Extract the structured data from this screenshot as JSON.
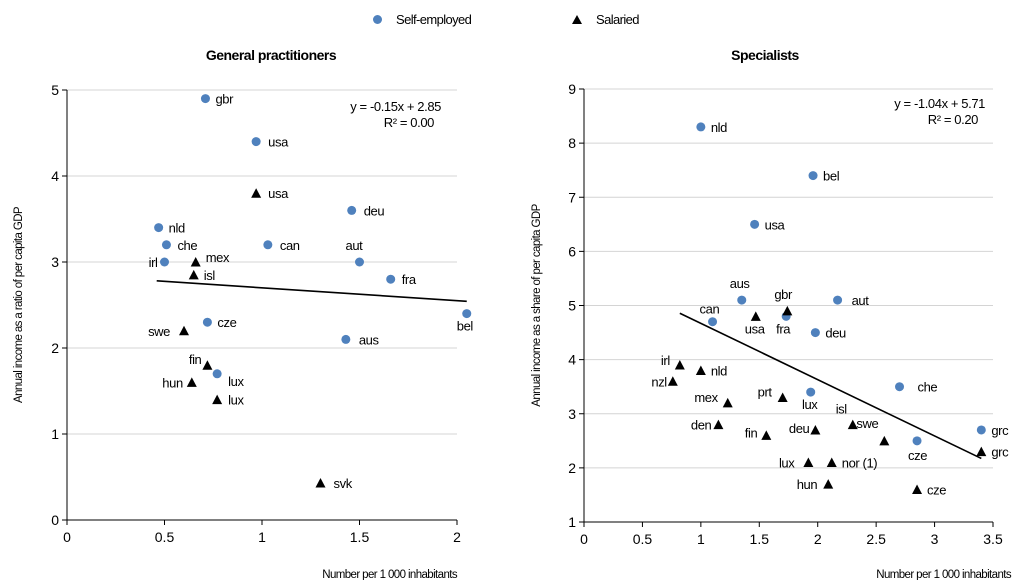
{
  "legend": {
    "self_employed": "Self-employed",
    "salaried": "Salaried",
    "self_employed_color": "#4f81bd",
    "salaried_color": "#000000",
    "self_employed_marker": "circle",
    "salaried_marker": "triangle"
  },
  "chart_data": [
    {
      "type": "scatter",
      "title": "General practitioners",
      "xlabel": "Number per 1 000 inhabitants",
      "ylabel": "Annual income as a ratio of per capita GDP",
      "xlim": [
        0,
        2
      ],
      "ylim": [
        0,
        5
      ],
      "xticks": [
        0,
        0.5,
        1,
        1.5,
        2
      ],
      "xtick_labels": [
        "0",
        "0.5",
        "1",
        "1.5",
        "2"
      ],
      "yticks": [
        0,
        1,
        2,
        3,
        4,
        5
      ],
      "ytick_labels": [
        "0",
        "1",
        "2",
        "3",
        "4",
        "5"
      ],
      "grid": "horizontal",
      "trendline": {
        "equation": "y = -0.15x + 2.85",
        "r2": "R² = 0.00",
        "slope": -0.15,
        "intercept": 2.85,
        "x_range": [
          0.46,
          2.05
        ]
      },
      "series": [
        {
          "name": "Self-employed",
          "points": [
            {
              "label": "gbr",
              "x": 0.71,
              "y": 4.9
            },
            {
              "label": "usa",
              "x": 0.97,
              "y": 4.4
            },
            {
              "label": "deu",
              "x": 1.46,
              "y": 3.6
            },
            {
              "label": "nld",
              "x": 0.47,
              "y": 3.4
            },
            {
              "label": "che",
              "x": 0.51,
              "y": 3.2
            },
            {
              "label": "can",
              "x": 1.03,
              "y": 3.2
            },
            {
              "label": "irl",
              "x": 0.5,
              "y": 3.0
            },
            {
              "label": "aut",
              "x": 1.5,
              "y": 3.0
            },
            {
              "label": "fra",
              "x": 1.66,
              "y": 2.8
            },
            {
              "label": "cze",
              "x": 0.72,
              "y": 2.3
            },
            {
              "label": "aus",
              "x": 1.43,
              "y": 2.1
            },
            {
              "label": "bel",
              "x": 2.05,
              "y": 2.4
            },
            {
              "label": "lux",
              "x": 0.77,
              "y": 1.7
            }
          ]
        },
        {
          "name": "Salaried",
          "points": [
            {
              "label": "usa",
              "x": 0.97,
              "y": 3.8
            },
            {
              "label": "mex",
              "x": 0.66,
              "y": 3.0
            },
            {
              "label": "isl",
              "x": 0.65,
              "y": 2.85
            },
            {
              "label": "swe",
              "x": 0.6,
              "y": 2.2
            },
            {
              "label": "fin",
              "x": 0.72,
              "y": 1.8
            },
            {
              "label": "hun",
              "x": 0.64,
              "y": 1.6
            },
            {
              "label": "lux",
              "x": 0.77,
              "y": 1.4
            },
            {
              "label": "svk",
              "x": 1.3,
              "y": 0.43
            }
          ]
        }
      ]
    },
    {
      "type": "scatter",
      "title": "Specialists",
      "xlabel": "Number per 1 000 inhabitants",
      "ylabel": "Annual income as a share of per capita GDP",
      "xlim": [
        0,
        3.5
      ],
      "ylim": [
        1,
        9
      ],
      "xticks": [
        0,
        0.5,
        1,
        1.5,
        2,
        2.5,
        3,
        3.5
      ],
      "xtick_labels": [
        "0",
        "0.5",
        "1",
        "1.5",
        "2",
        "2.5",
        "3",
        "3.5"
      ],
      "yticks": [
        1,
        2,
        3,
        4,
        5,
        6,
        7,
        8,
        9
      ],
      "ytick_labels": [
        "1",
        "2",
        "3",
        "4",
        "5",
        "6",
        "7",
        "8",
        "9"
      ],
      "grid": "horizontal",
      "trendline": {
        "equation": "y = -1.04x + 5.71",
        "r2": "R² = 0.20",
        "slope": -1.04,
        "intercept": 5.71,
        "x_range": [
          0.82,
          3.4
        ]
      },
      "series": [
        {
          "name": "Self-employed",
          "points": [
            {
              "label": "nld",
              "x": 1.0,
              "y": 8.3
            },
            {
              "label": "bel",
              "x": 1.96,
              "y": 7.4
            },
            {
              "label": "usa",
              "x": 1.46,
              "y": 6.5
            },
            {
              "label": "aus",
              "x": 1.35,
              "y": 5.1
            },
            {
              "label": "aut",
              "x": 2.17,
              "y": 5.1
            },
            {
              "label": "can",
              "x": 1.1,
              "y": 4.7
            },
            {
              "label": "fra",
              "x": 1.73,
              "y": 4.8
            },
            {
              "label": "deu",
              "x": 1.98,
              "y": 4.5
            },
            {
              "label": "che",
              "x": 2.7,
              "y": 3.5
            },
            {
              "label": "lux",
              "x": 1.94,
              "y": 3.4
            },
            {
              "label": "cze",
              "x": 2.85,
              "y": 2.5
            },
            {
              "label": "grc",
              "x": 3.4,
              "y": 2.7
            }
          ]
        },
        {
          "name": "Salaried",
          "points": [
            {
              "label": "gbr",
              "x": 1.74,
              "y": 4.9
            },
            {
              "label": "usa",
              "x": 1.47,
              "y": 4.8
            },
            {
              "label": "irl",
              "x": 0.82,
              "y": 3.9
            },
            {
              "label": "nld",
              "x": 1.0,
              "y": 3.8
            },
            {
              "label": "nzl",
              "x": 0.76,
              "y": 3.6
            },
            {
              "label": "mex",
              "x": 1.23,
              "y": 3.2
            },
            {
              "label": "prt",
              "x": 1.7,
              "y": 3.3
            },
            {
              "label": "isl",
              "x": 2.3,
              "y": 2.8
            },
            {
              "label": "den",
              "x": 1.15,
              "y": 2.8
            },
            {
              "label": "fin",
              "x": 1.56,
              "y": 2.6
            },
            {
              "label": "deu",
              "x": 1.98,
              "y": 2.7
            },
            {
              "label": "swe",
              "x": 2.57,
              "y": 2.5
            },
            {
              "label": "grc",
              "x": 3.4,
              "y": 2.3
            },
            {
              "label": "lux",
              "x": 1.92,
              "y": 2.1
            },
            {
              "label": "nor (1)",
              "x": 2.12,
              "y": 2.1
            },
            {
              "label": "hun",
              "x": 2.09,
              "y": 1.7
            },
            {
              "label": "cze",
              "x": 2.85,
              "y": 1.6
            }
          ]
        }
      ]
    }
  ]
}
